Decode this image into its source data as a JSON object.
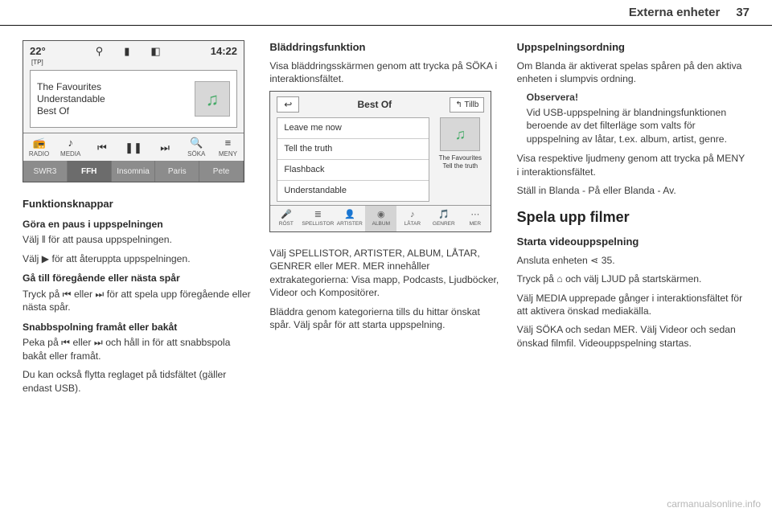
{
  "header": {
    "section": "Externa enheter",
    "page": "37"
  },
  "figure1": {
    "temperature": "22°",
    "tp": "[TP]",
    "clock": "14:22",
    "track1": "The Favourites",
    "track2": "Understandable",
    "track3": "Best Of",
    "controls": {
      "radio": "RADIO",
      "media": "MEDIA",
      "soka": "SÖKA",
      "meny": "MENY"
    },
    "stations": [
      "SWR3",
      "FFH",
      "Insomnia",
      "Paris",
      "Pete"
    ]
  },
  "col1": {
    "h_funktionsknappar": "Funktionsknappar",
    "h_paus": "Göra en paus i uppspelningen",
    "p_paus": "Välj ‖ för att pausa uppspelningen.",
    "p_ater": "Välj ▶ för att återuppta uppspelningen.",
    "h_spar": "Gå till föregående eller nästa spår",
    "p_spar": "Tryck på ⏮ eller ⏭ för att spela upp föregående eller nästa spår.",
    "h_snabb": "Snabbspolning framåt eller bakåt",
    "p_snabb": "Peka på ⏮ eller ⏭ och håll in för att snabbspola bakåt eller framåt.",
    "p_reglage": "Du kan också flytta reglaget på tidsfältet (gäller endast USB)."
  },
  "col2": {
    "h_bladdring": "Bläddringsfunktion",
    "p_bladdring": "Visa bläddringsskärmen genom att trycka på SÖKA i interaktionsfältet."
  },
  "figure2": {
    "album": "Best Of",
    "tillb": "↰ Tillb",
    "items": [
      "Leave me now",
      "Tell the truth",
      "Flashback",
      "Understandable"
    ],
    "side1": "The Favourites",
    "side2": "Tell the truth",
    "cats": [
      "RÖST",
      "SPELLISTOR",
      "ARTISTER",
      "ALBUM",
      "LÅTAR",
      "GENRER",
      "MER"
    ]
  },
  "col2b": {
    "p_valj": "Välj SPELLISTOR, ARTISTER, ALBUM, LÅTAR, GENRER eller MER. MER innehåller extrakategorierna: Visa mapp, Podcasts, Ljudböcker, Videor och Kompositörer.",
    "p_bladdra": "Bläddra genom kategorierna tills du hittar önskat spår. Välj spår för att starta uppspelning."
  },
  "col3": {
    "h_ordning": "Uppspelningsordning",
    "p_ordning": "Om Blanda är aktiverat spelas spåren på den aktiva enheten i slumpvis ordning.",
    "note_hdr": "Observera!",
    "note_body": "Vid USB-uppspelning är blandningsfunktionen beroende av det filterläge som valts för uppspelning av låtar, t.ex. album, artist, genre.",
    "p_meny": "Visa respektive ljudmeny genom att trycka på MENY i interaktionsfältet.",
    "p_stall": "Ställ in Blanda - På eller Blanda - Av.",
    "h_filmer": "Spela upp filmer",
    "h_video": "Starta videouppspelning",
    "p_anslut": "Ansluta enheten ⋖ 35.",
    "p_tryck": "Tryck på ⌂ och välj LJUD på startskärmen.",
    "p_media": "Välj MEDIA upprepade gånger i interaktionsfältet för att aktivera önskad mediakälla.",
    "p_soka": "Välj SÖKA och sedan MER. Välj Videor och sedan önskad filmfil. Videouppspelning startas."
  },
  "footer": {
    "url": "carmanualsonline.info"
  }
}
